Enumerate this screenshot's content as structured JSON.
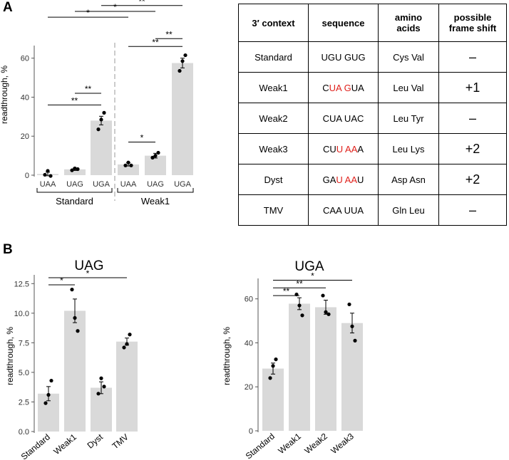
{
  "panels": {
    "a": "A",
    "b": "B"
  },
  "colors": {
    "bar": "#d9d9d9",
    "highlight": "#e0201b",
    "axis": "#555555",
    "dashed": "#999999"
  },
  "chart_data": [
    {
      "id": "A",
      "type": "bar",
      "title": "",
      "ylabel": "readthrough, %",
      "ylim": [
        0,
        65
      ],
      "yticks": [
        "0",
        "20",
        "40",
        "60"
      ],
      "groups": [
        {
          "name": "Standard",
          "categories": [
            "UAA",
            "UAG",
            "UGA"
          ]
        },
        {
          "name": "Weak1",
          "categories": [
            "UAA",
            "UAG",
            "UGA"
          ]
        }
      ],
      "categories": [
        "UAA",
        "UAG",
        "UGA",
        "UAA",
        "UAG",
        "UGA"
      ],
      "values": [
        0.6,
        3.0,
        28.0,
        5.5,
        10.0,
        57.5
      ],
      "errors": [
        0.9,
        0.6,
        2.2,
        0.8,
        1.2,
        2.5
      ],
      "points": [
        [
          0.2,
          2.2,
          -0.4
        ],
        [
          2.5,
          3.5,
          3.1
        ],
        [
          23.5,
          28.5,
          32.0
        ],
        [
          5.0,
          6.5,
          5.0
        ],
        [
          9.0,
          10.0,
          11.5
        ],
        [
          53.5,
          58.5,
          61.5
        ]
      ],
      "significance": [
        {
          "from": 0,
          "to": 2,
          "label": "**",
          "y": 36
        },
        {
          "from": 1,
          "to": 2,
          "label": "**",
          "y": 42
        },
        {
          "from": 3,
          "to": 4,
          "label": "*",
          "y": 17
        },
        {
          "from": 3,
          "to": 5,
          "label": "**",
          "y": 66
        },
        {
          "from": 4,
          "to": 5,
          "label": "**",
          "y": 70
        },
        {
          "from": 0,
          "to": 3,
          "label": "*",
          "y": 81
        },
        {
          "from": 1,
          "to": 4,
          "label": "*",
          "y": 84
        },
        {
          "from": 2,
          "to": 5,
          "label": "**",
          "y": 87
        }
      ]
    },
    {
      "id": "B-UAG",
      "type": "bar",
      "title": "UAG",
      "ylabel": "readthrough, %",
      "ylim": [
        0,
        13
      ],
      "yticks": [
        "0.0",
        "2.5",
        "5.0",
        "7.5",
        "10.0",
        "12.5"
      ],
      "categories": [
        "Standard",
        "Weak1",
        "Dyst",
        "TMV"
      ],
      "values": [
        3.2,
        10.2,
        3.7,
        7.6
      ],
      "errors": [
        0.6,
        1.0,
        0.5,
        0.3
      ],
      "points": [
        [
          2.4,
          3.1,
          4.3
        ],
        [
          12.0,
          9.6,
          8.5
        ],
        [
          3.2,
          4.5,
          3.8
        ],
        [
          7.1,
          7.4,
          8.2
        ]
      ],
      "significance": [
        {
          "from": 0,
          "to": 1,
          "label": "*",
          "y": 12.4
        },
        {
          "from": 0,
          "to": 3,
          "label": "*",
          "y": 13.0
        }
      ]
    },
    {
      "id": "B-UGA",
      "type": "bar",
      "title": "UGA",
      "ylabel": "readthrough, %",
      "ylim": [
        0,
        68
      ],
      "yticks": [
        "0",
        "20",
        "40",
        "60"
      ],
      "categories": [
        "Standard",
        "Weak1",
        "Weak2",
        "Weak3"
      ],
      "values": [
        28.3,
        57.8,
        56.2,
        49.0
      ],
      "errors": [
        2.5,
        2.7,
        3.2,
        4.5
      ],
      "points": [
        [
          24.0,
          29.5,
          32.5
        ],
        [
          62.0,
          57.0,
          52.5
        ],
        [
          61.5,
          54.0,
          53.0
        ],
        [
          57.5,
          47.5,
          41.0
        ]
      ],
      "significance": [
        {
          "from": 0,
          "to": 1,
          "label": "**",
          "y": 61.5
        },
        {
          "from": 0,
          "to": 2,
          "label": "**",
          "y": 65.0
        },
        {
          "from": 0,
          "to": 3,
          "label": "*",
          "y": 68.5
        }
      ]
    }
  ],
  "table": {
    "headers": [
      {
        "l1": "3′ context",
        "l2": ""
      },
      {
        "l1": "sequence",
        "l2": ""
      },
      {
        "l1": "amino",
        "l2": "acids"
      },
      {
        "l1": "possible",
        "l2": "frame shift"
      }
    ],
    "rows": [
      {
        "context": "Standard",
        "seq": [
          {
            "t": "UGU GUG",
            "red": false
          }
        ],
        "aa": "Cys Val",
        "shift": "–"
      },
      {
        "context": "Weak1",
        "seq": [
          {
            "t": "C",
            "red": false
          },
          {
            "t": "UA G",
            "red": true
          },
          {
            "t": "UA",
            "red": false
          }
        ],
        "aa": "Leu Val",
        "shift": "+1"
      },
      {
        "context": "Weak2",
        "seq": [
          {
            "t": "CUA UAC",
            "red": false
          }
        ],
        "aa": "Leu Tyr",
        "shift": "–"
      },
      {
        "context": "Weak3",
        "seq": [
          {
            "t": "CU",
            "red": false
          },
          {
            "t": "U AA",
            "red": true
          },
          {
            "t": "A",
            "red": false
          }
        ],
        "aa": "Leu Lys",
        "shift": "+2"
      },
      {
        "context": "Dyst",
        "seq": [
          {
            "t": "GA",
            "red": false
          },
          {
            "t": "U AA",
            "red": true
          },
          {
            "t": "U",
            "red": false
          }
        ],
        "aa": "Asp Asn",
        "shift": "+2"
      },
      {
        "context": "TMV",
        "seq": [
          {
            "t": "CAA UUA",
            "red": false
          }
        ],
        "aa": "Gln Leu",
        "shift": "–"
      }
    ]
  }
}
